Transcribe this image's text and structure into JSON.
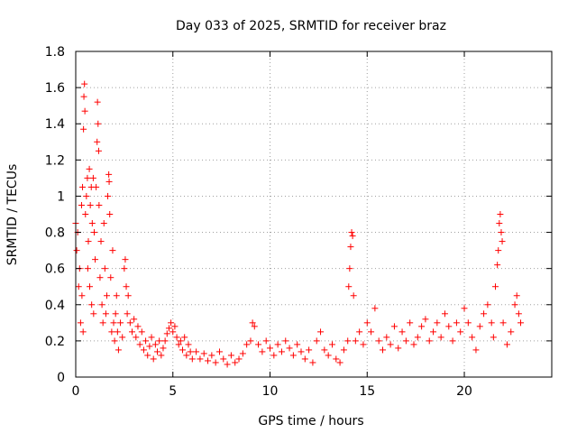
{
  "chart_data": {
    "type": "scatter",
    "title": "Day 033 of 2025, SRMTID for receiver braz",
    "xlabel": "GPS time / hours",
    "ylabel": "SRMTID / TECUs",
    "xlim": [
      0,
      24.5
    ],
    "ylim": [
      0,
      1.8
    ],
    "xticks": [
      0,
      5,
      10,
      15,
      20
    ],
    "xtick_labels": [
      "0",
      "5",
      "10",
      "15",
      "20"
    ],
    "yticks": [
      0,
      0.2,
      0.4,
      0.6,
      0.8,
      1.0,
      1.2,
      1.4,
      1.6,
      1.8
    ],
    "ytick_labels": [
      "0",
      "0.2",
      "0.4",
      "0.6",
      "0.8",
      "1",
      "1.2",
      "1.4",
      "1.6",
      "1.8"
    ],
    "grid": true,
    "marker": "+",
    "series": [
      {
        "name": "SRMTID",
        "color": "#ff0000",
        "points": [
          [
            0.0,
            0.85
          ],
          [
            0.05,
            0.7
          ],
          [
            0.1,
            0.8
          ],
          [
            0.15,
            0.5
          ],
          [
            0.2,
            0.6
          ],
          [
            0.25,
            0.3
          ],
          [
            0.3,
            0.95
          ],
          [
            0.32,
            0.45
          ],
          [
            0.35,
            1.05
          ],
          [
            0.38,
            0.25
          ],
          [
            0.4,
            1.37
          ],
          [
            0.42,
            1.55
          ],
          [
            0.45,
            1.62
          ],
          [
            0.47,
            1.47
          ],
          [
            0.5,
            0.9
          ],
          [
            0.55,
            1.0
          ],
          [
            0.6,
            1.1
          ],
          [
            0.62,
            0.6
          ],
          [
            0.65,
            0.75
          ],
          [
            0.7,
            1.15
          ],
          [
            0.72,
            0.5
          ],
          [
            0.75,
            0.95
          ],
          [
            0.8,
            1.05
          ],
          [
            0.82,
            0.4
          ],
          [
            0.85,
            0.85
          ],
          [
            0.9,
            1.1
          ],
          [
            0.92,
            0.35
          ],
          [
            0.95,
            0.8
          ],
          [
            1.0,
            0.65
          ],
          [
            1.05,
            1.05
          ],
          [
            1.1,
            1.3
          ],
          [
            1.12,
            1.52
          ],
          [
            1.15,
            1.4
          ],
          [
            1.18,
            1.25
          ],
          [
            1.2,
            0.95
          ],
          [
            1.25,
            0.55
          ],
          [
            1.3,
            0.75
          ],
          [
            1.35,
            0.4
          ],
          [
            1.4,
            0.3
          ],
          [
            1.45,
            0.85
          ],
          [
            1.5,
            0.6
          ],
          [
            1.55,
            0.35
          ],
          [
            1.6,
            0.45
          ],
          [
            1.65,
            1.0
          ],
          [
            1.7,
            1.12
          ],
          [
            1.72,
            1.08
          ],
          [
            1.75,
            0.9
          ],
          [
            1.8,
            0.55
          ],
          [
            1.85,
            0.25
          ],
          [
            1.9,
            0.7
          ],
          [
            1.95,
            0.3
          ],
          [
            2.0,
            0.2
          ],
          [
            2.05,
            0.35
          ],
          [
            2.1,
            0.45
          ],
          [
            2.15,
            0.25
          ],
          [
            2.2,
            0.15
          ],
          [
            2.3,
            0.3
          ],
          [
            2.4,
            0.22
          ],
          [
            2.5,
            0.6
          ],
          [
            2.55,
            0.65
          ],
          [
            2.6,
            0.5
          ],
          [
            2.65,
            0.35
          ],
          [
            2.7,
            0.45
          ],
          [
            2.8,
            0.3
          ],
          [
            2.9,
            0.25
          ],
          [
            3.0,
            0.32
          ],
          [
            3.1,
            0.22
          ],
          [
            3.2,
            0.28
          ],
          [
            3.3,
            0.18
          ],
          [
            3.4,
            0.25
          ],
          [
            3.5,
            0.15
          ],
          [
            3.6,
            0.2
          ],
          [
            3.7,
            0.12
          ],
          [
            3.8,
            0.17
          ],
          [
            3.9,
            0.22
          ],
          [
            4.0,
            0.1
          ],
          [
            4.1,
            0.18
          ],
          [
            4.2,
            0.14
          ],
          [
            4.3,
            0.2
          ],
          [
            4.4,
            0.12
          ],
          [
            4.5,
            0.16
          ],
          [
            4.6,
            0.2
          ],
          [
            4.7,
            0.24
          ],
          [
            4.8,
            0.27
          ],
          [
            4.9,
            0.3
          ],
          [
            5.0,
            0.25
          ],
          [
            5.1,
            0.28
          ],
          [
            5.2,
            0.22
          ],
          [
            5.3,
            0.18
          ],
          [
            5.4,
            0.2
          ],
          [
            5.5,
            0.15
          ],
          [
            5.6,
            0.22
          ],
          [
            5.7,
            0.12
          ],
          [
            5.8,
            0.18
          ],
          [
            5.9,
            0.14
          ],
          [
            6.0,
            0.1
          ],
          [
            6.2,
            0.14
          ],
          [
            6.4,
            0.1
          ],
          [
            6.6,
            0.13
          ],
          [
            6.8,
            0.09
          ],
          [
            7.0,
            0.12
          ],
          [
            7.2,
            0.08
          ],
          [
            7.4,
            0.14
          ],
          [
            7.6,
            0.1
          ],
          [
            7.8,
            0.07
          ],
          [
            8.0,
            0.12
          ],
          [
            8.2,
            0.08
          ],
          [
            8.4,
            0.1
          ],
          [
            8.6,
            0.13
          ],
          [
            8.8,
            0.18
          ],
          [
            9.0,
            0.2
          ],
          [
            9.1,
            0.3
          ],
          [
            9.2,
            0.28
          ],
          [
            9.4,
            0.18
          ],
          [
            9.6,
            0.14
          ],
          [
            9.8,
            0.2
          ],
          [
            10.0,
            0.16
          ],
          [
            10.2,
            0.12
          ],
          [
            10.4,
            0.18
          ],
          [
            10.6,
            0.14
          ],
          [
            10.8,
            0.2
          ],
          [
            11.0,
            0.16
          ],
          [
            11.2,
            0.12
          ],
          [
            11.4,
            0.18
          ],
          [
            11.6,
            0.14
          ],
          [
            11.8,
            0.1
          ],
          [
            12.0,
            0.15
          ],
          [
            12.2,
            0.08
          ],
          [
            12.4,
            0.2
          ],
          [
            12.6,
            0.25
          ],
          [
            12.8,
            0.15
          ],
          [
            13.0,
            0.12
          ],
          [
            13.2,
            0.18
          ],
          [
            13.4,
            0.1
          ],
          [
            13.6,
            0.08
          ],
          [
            13.8,
            0.15
          ],
          [
            14.0,
            0.2
          ],
          [
            14.05,
            0.5
          ],
          [
            14.1,
            0.6
          ],
          [
            14.15,
            0.72
          ],
          [
            14.2,
            0.8
          ],
          [
            14.25,
            0.78
          ],
          [
            14.3,
            0.45
          ],
          [
            14.4,
            0.2
          ],
          [
            14.6,
            0.25
          ],
          [
            14.8,
            0.18
          ],
          [
            15.0,
            0.3
          ],
          [
            15.2,
            0.25
          ],
          [
            15.4,
            0.38
          ],
          [
            15.6,
            0.2
          ],
          [
            15.8,
            0.15
          ],
          [
            16.0,
            0.22
          ],
          [
            16.2,
            0.18
          ],
          [
            16.4,
            0.28
          ],
          [
            16.6,
            0.16
          ],
          [
            16.8,
            0.25
          ],
          [
            17.0,
            0.2
          ],
          [
            17.2,
            0.3
          ],
          [
            17.4,
            0.18
          ],
          [
            17.6,
            0.22
          ],
          [
            17.8,
            0.28
          ],
          [
            18.0,
            0.32
          ],
          [
            18.2,
            0.2
          ],
          [
            18.4,
            0.25
          ],
          [
            18.6,
            0.3
          ],
          [
            18.8,
            0.22
          ],
          [
            19.0,
            0.35
          ],
          [
            19.2,
            0.28
          ],
          [
            19.4,
            0.2
          ],
          [
            19.6,
            0.3
          ],
          [
            19.8,
            0.25
          ],
          [
            20.0,
            0.38
          ],
          [
            20.2,
            0.3
          ],
          [
            20.4,
            0.22
          ],
          [
            20.6,
            0.15
          ],
          [
            20.8,
            0.28
          ],
          [
            21.0,
            0.35
          ],
          [
            21.2,
            0.4
          ],
          [
            21.4,
            0.3
          ],
          [
            21.5,
            0.22
          ],
          [
            21.6,
            0.5
          ],
          [
            21.7,
            0.62
          ],
          [
            21.75,
            0.7
          ],
          [
            21.8,
            0.85
          ],
          [
            21.85,
            0.9
          ],
          [
            21.9,
            0.8
          ],
          [
            21.95,
            0.75
          ],
          [
            22.0,
            0.3
          ],
          [
            22.2,
            0.18
          ],
          [
            22.4,
            0.25
          ],
          [
            22.6,
            0.4
          ],
          [
            22.7,
            0.45
          ],
          [
            22.8,
            0.35
          ],
          [
            22.9,
            0.3
          ]
        ]
      }
    ]
  }
}
